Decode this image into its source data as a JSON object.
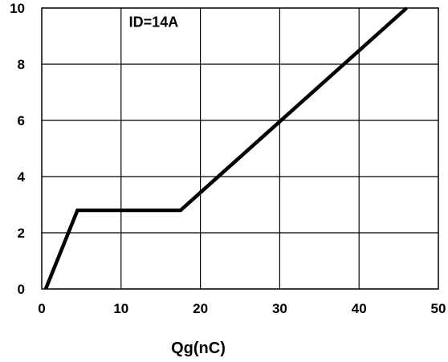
{
  "chart_data": {
    "type": "line",
    "title": "",
    "xlabel": "Qg(nC)",
    "ylabel": "",
    "xlim": [
      0,
      50
    ],
    "ylim": [
      0,
      10
    ],
    "x_ticks": [
      "0",
      "10",
      "20",
      "30",
      "40",
      "50"
    ],
    "y_ticks": [
      "0",
      "2",
      "4",
      "6",
      "8",
      "10"
    ],
    "grid": true,
    "annotations": [
      {
        "text": "ID=14A",
        "x": 11,
        "y": 9.5
      }
    ],
    "series": [
      {
        "color": "#000000",
        "x": [
          0.5,
          4.5,
          17.5,
          46
        ],
        "y": [
          0,
          2.8,
          2.8,
          10
        ]
      }
    ]
  }
}
